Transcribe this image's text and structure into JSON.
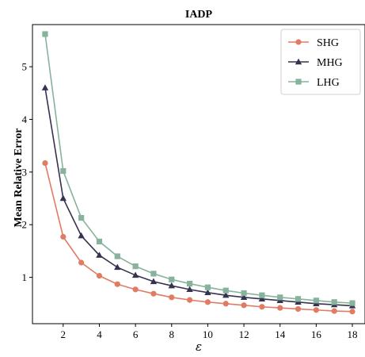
{
  "chart_data": {
    "type": "line",
    "title": "IADP",
    "xlabel": "ε",
    "ylabel": "Mean Relative Error",
    "x": [
      1,
      2,
      3,
      4,
      5,
      6,
      7,
      8,
      9,
      10,
      11,
      12,
      13,
      14,
      15,
      16,
      17,
      18
    ],
    "xlim": [
      0.3,
      18.7
    ],
    "ylim": [
      0.12,
      5.8
    ],
    "xticks": [
      2,
      4,
      6,
      8,
      10,
      12,
      14,
      16,
      18
    ],
    "yticks": [
      1,
      2,
      3,
      4,
      5
    ],
    "grid": false,
    "legend_position": "top-right",
    "series": [
      {
        "name": "SHG",
        "color": "#e07b64",
        "marker": "circle",
        "values": [
          3.17,
          1.77,
          1.28,
          1.03,
          0.87,
          0.77,
          0.69,
          0.62,
          0.57,
          0.53,
          0.5,
          0.47,
          0.44,
          0.42,
          0.4,
          0.38,
          0.36,
          0.35
        ]
      },
      {
        "name": "MHG",
        "color": "#35334f",
        "marker": "triangle",
        "values": [
          4.6,
          2.5,
          1.79,
          1.42,
          1.19,
          1.04,
          0.92,
          0.84,
          0.77,
          0.71,
          0.66,
          0.62,
          0.59,
          0.56,
          0.53,
          0.5,
          0.48,
          0.46
        ]
      },
      {
        "name": "LHG",
        "color": "#87b39c",
        "marker": "square",
        "values": [
          5.62,
          3.02,
          2.13,
          1.68,
          1.4,
          1.21,
          1.07,
          0.96,
          0.88,
          0.81,
          0.75,
          0.7,
          0.66,
          0.62,
          0.59,
          0.56,
          0.53,
          0.51
        ]
      }
    ]
  }
}
